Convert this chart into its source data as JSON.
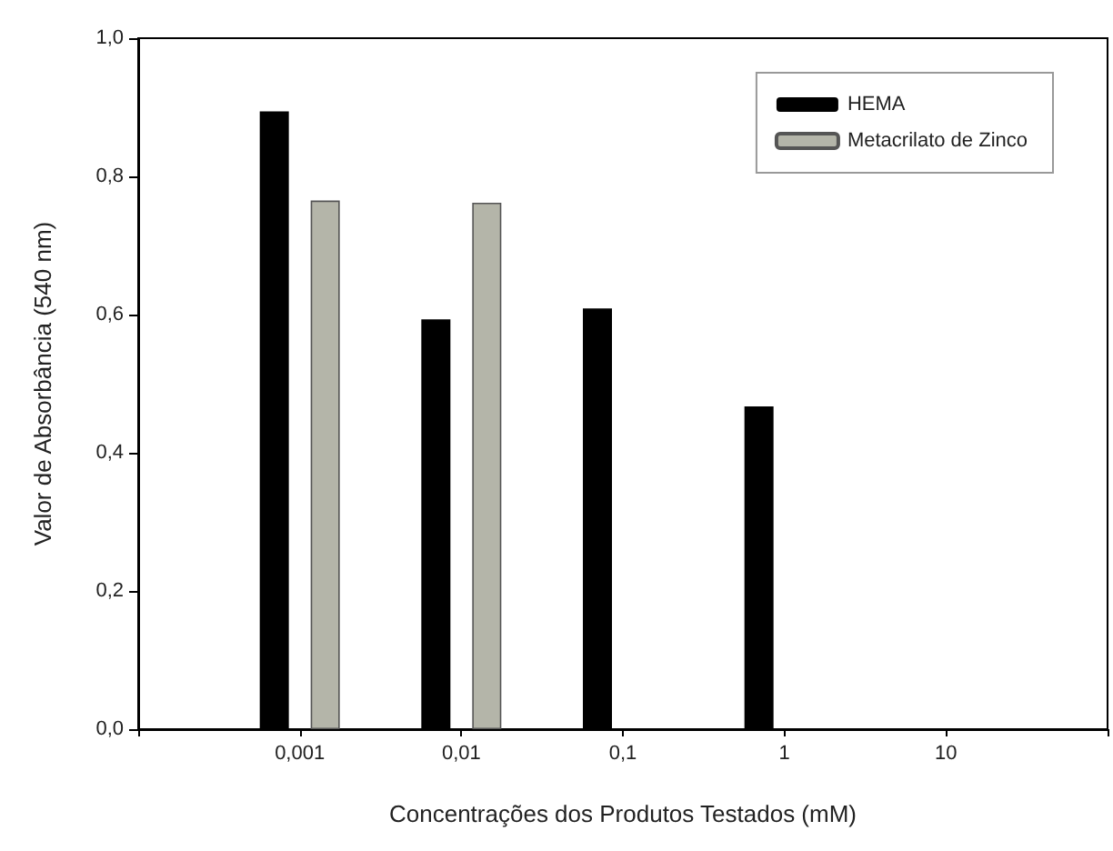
{
  "chart_data": {
    "type": "bar",
    "xlabel": "Concentrações dos Produtos Testados (mM)",
    "ylabel": "Valor de Absorbância (540 nm)",
    "categories": [
      null,
      "0,001",
      "0,01",
      "0,1",
      "1",
      "10",
      null
    ],
    "series": [
      {
        "name": "HEMA",
        "color": "#000000",
        "values": [
          null,
          0.894,
          0.593,
          0.609,
          0.467,
          null,
          null
        ]
      },
      {
        "name": "Metacrilato de Zinco",
        "color": "#b4b5a9",
        "values": [
          null,
          0.765,
          0.762,
          null,
          null,
          null,
          null
        ]
      }
    ],
    "ylim": [
      0,
      1.0
    ],
    "yticks": [
      {
        "value": 0,
        "label": "0,0"
      },
      {
        "value": 0.2,
        "label": "0,2"
      },
      {
        "value": 0.4,
        "label": "0,4"
      },
      {
        "value": 0.6,
        "label": "0,6"
      },
      {
        "value": 0.8,
        "label": "0,8"
      },
      {
        "value": 1.0,
        "label": "1,0"
      }
    ],
    "grid": false,
    "legend": "top right"
  }
}
